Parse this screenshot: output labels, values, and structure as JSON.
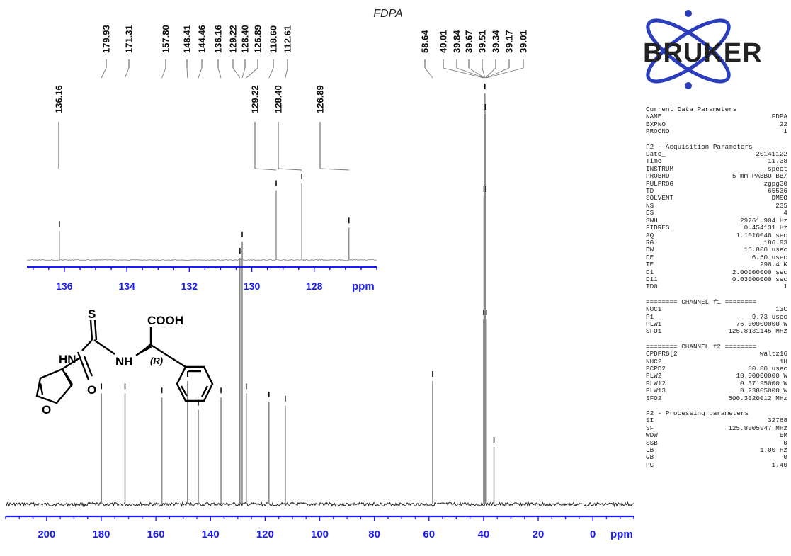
{
  "title": "FDPA",
  "logo": {
    "text": "BRUKER",
    "color": "#2a3dbd"
  },
  "colors": {
    "axis": "#1a1aff",
    "trace": "#8a8a8a",
    "text": "#111111"
  },
  "chart_data": [
    {
      "type": "line",
      "name": "main-spectrum",
      "xlabel": "ppm",
      "xlim": [
        215,
        -15
      ],
      "ticks": [
        200,
        180,
        160,
        140,
        120,
        100,
        80,
        60,
        40,
        20,
        0
      ],
      "peaks": [
        {
          "ppm": 179.93,
          "intensity": 0.27
        },
        {
          "ppm": 171.31,
          "intensity": 0.27
        },
        {
          "ppm": 157.8,
          "intensity": 0.26
        },
        {
          "ppm": 148.41,
          "intensity": 0.3
        },
        {
          "ppm": 144.46,
          "intensity": 0.23
        },
        {
          "ppm": 136.16,
          "intensity": 0.26
        },
        {
          "ppm": 129.22,
          "intensity": 0.6
        },
        {
          "ppm": 128.4,
          "intensity": 0.64
        },
        {
          "ppm": 126.89,
          "intensity": 0.27
        },
        {
          "ppm": 118.6,
          "intensity": 0.25
        },
        {
          "ppm": 112.61,
          "intensity": 0.24
        },
        {
          "ppm": 58.64,
          "intensity": 0.3
        },
        {
          "ppm": 40.01,
          "intensity": 0.45
        },
        {
          "ppm": 39.84,
          "intensity": 0.75
        },
        {
          "ppm": 39.67,
          "intensity": 0.95
        },
        {
          "ppm": 39.51,
          "intensity": 1.0
        },
        {
          "ppm": 39.34,
          "intensity": 0.95
        },
        {
          "ppm": 39.17,
          "intensity": 0.75
        },
        {
          "ppm": 39.01,
          "intensity": 0.45
        },
        {
          "ppm": 36.2,
          "intensity": 0.14
        }
      ],
      "peak_labels": [
        "179.93",
        "171.31",
        "157.80",
        "148.41",
        "144.46",
        "136.16",
        "129.22",
        "128.40",
        "126.89",
        "118.60",
        "112.61",
        "58.64",
        "40.01",
        "39.84",
        "39.67",
        "39.51",
        "39.34",
        "39.17",
        "39.01"
      ]
    },
    {
      "type": "line",
      "name": "inset-expansion",
      "xlabel": "ppm",
      "xlim": [
        137.2,
        126.0
      ],
      "ticks": [
        136,
        134,
        132,
        130,
        128
      ],
      "peaks": [
        {
          "ppm": 136.16,
          "intensity": 0.34
        },
        {
          "ppm": 129.22,
          "intensity": 0.82
        },
        {
          "ppm": 128.4,
          "intensity": 0.9
        },
        {
          "ppm": 126.89,
          "intensity": 0.38
        }
      ],
      "peak_labels": [
        "136.16",
        "129.22",
        "128.40",
        "126.89"
      ]
    }
  ],
  "molecule": {
    "cooh": "COOH",
    "s": "S",
    "hn": "HN",
    "nh": "NH",
    "o_carbonyl": "O",
    "o_furan": "O",
    "stereo": "(R)"
  },
  "params": {
    "current": {
      "title": "Current Data Parameters",
      "rows": [
        [
          "NAME",
          "FDPA"
        ],
        [
          "EXPNO",
          "22"
        ],
        [
          "PROCNO",
          "1"
        ]
      ]
    },
    "acq": {
      "title": "F2 - Acquisition Parameters",
      "rows": [
        [
          "Date_",
          "20141122"
        ],
        [
          "Time",
          "11.38"
        ],
        [
          "INSTRUM",
          "spect"
        ],
        [
          "PROBHD",
          "5 mm PABBO BB/"
        ],
        [
          "PULPROG",
          "zgpg30"
        ],
        [
          "TD",
          "65536"
        ],
        [
          "SOLVENT",
          "DMSO"
        ],
        [
          "NS",
          "235"
        ],
        [
          "DS",
          "4"
        ],
        [
          "SWH",
          "29761.904 Hz"
        ],
        [
          "FIDRES",
          "0.454131 Hz"
        ],
        [
          "AQ",
          "1.1010048 sec"
        ],
        [
          "RG",
          "186.93"
        ],
        [
          "DW",
          "16.800 usec"
        ],
        [
          "DE",
          "6.50 usec"
        ],
        [
          "TE",
          "298.4 K"
        ],
        [
          "D1",
          "2.00000000 sec"
        ],
        [
          "D11",
          "0.03000000 sec"
        ],
        [
          "TD0",
          "1"
        ]
      ]
    },
    "ch1": {
      "title": "======== CHANNEL f1 ========",
      "rows": [
        [
          "NUC1",
          "13C"
        ],
        [
          "P1",
          "9.73 usec"
        ],
        [
          "PLW1",
          "76.00000000 W"
        ],
        [
          "SFO1",
          "125.8131145 MHz"
        ]
      ]
    },
    "ch2": {
      "title": "======== CHANNEL f2 ========",
      "rows": [
        [
          "CPDPRG[2",
          "waltz16"
        ],
        [
          "NUC2",
          "1H"
        ],
        [
          "PCPD2",
          "80.00 usec"
        ],
        [
          "PLW2",
          "18.00000000 W"
        ],
        [
          "PLW12",
          "0.37195000 W"
        ],
        [
          "PLW13",
          "0.23805000 W"
        ],
        [
          "SFO2",
          "500.3020012 MHz"
        ]
      ]
    },
    "proc": {
      "title": "F2 - Processing parameters",
      "rows": [
        [
          "SI",
          "32768"
        ],
        [
          "SF",
          "125.8005947 MHz"
        ],
        [
          "WDW",
          "EM"
        ],
        [
          "SSB",
          "0"
        ],
        [
          "LB",
          "1.00 Hz"
        ],
        [
          "GB",
          "0"
        ],
        [
          "PC",
          "1.40"
        ]
      ]
    }
  }
}
